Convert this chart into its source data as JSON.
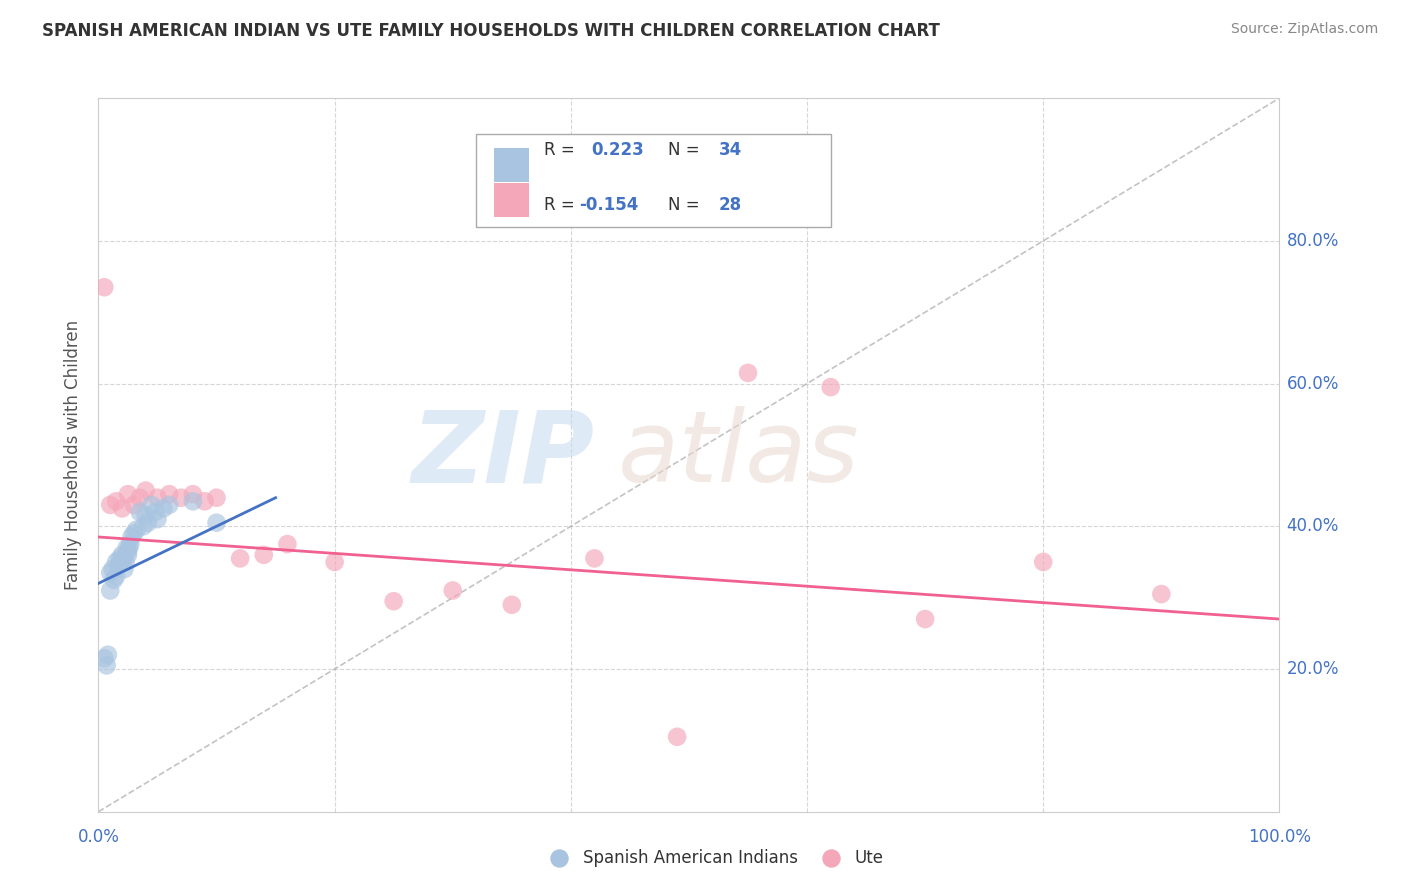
{
  "title": "SPANISH AMERICAN INDIAN VS UTE FAMILY HOUSEHOLDS WITH CHILDREN CORRELATION CHART",
  "source": "Source: ZipAtlas.com",
  "ylabel": "Family Households with Children",
  "xlim": [
    0.0,
    1.0
  ],
  "ylim": [
    0.0,
    1.0
  ],
  "legend_r1": "R =  0.223",
  "legend_n1": "N = 34",
  "legend_r2": "R = -0.154",
  "legend_n2": "N = 28",
  "color_blue": "#a8c4e0",
  "color_pink": "#f4a7b9",
  "line_blue": "#4472c4",
  "line_pink": "#f06090",
  "scatter_alpha": 0.65,
  "scatter_size": 180,
  "spanish_x": [
    0.005,
    0.007,
    0.008,
    0.01,
    0.01,
    0.012,
    0.013,
    0.015,
    0.015,
    0.017,
    0.018,
    0.02,
    0.021,
    0.022,
    0.023,
    0.024,
    0.025,
    0.025,
    0.026,
    0.027,
    0.028,
    0.03,
    0.032,
    0.035,
    0.038,
    0.04,
    0.042,
    0.045,
    0.048,
    0.05,
    0.055,
    0.06,
    0.08,
    0.1
  ],
  "spanish_y": [
    0.215,
    0.205,
    0.22,
    0.335,
    0.31,
    0.34,
    0.325,
    0.35,
    0.33,
    0.345,
    0.355,
    0.36,
    0.355,
    0.34,
    0.35,
    0.37,
    0.36,
    0.365,
    0.37,
    0.375,
    0.385,
    0.39,
    0.395,
    0.42,
    0.4,
    0.415,
    0.405,
    0.43,
    0.42,
    0.41,
    0.425,
    0.43,
    0.435,
    0.405
  ],
  "ute_x": [
    0.005,
    0.01,
    0.015,
    0.02,
    0.025,
    0.03,
    0.035,
    0.04,
    0.05,
    0.06,
    0.07,
    0.08,
    0.09,
    0.1,
    0.12,
    0.14,
    0.16,
    0.2,
    0.25,
    0.3,
    0.35,
    0.42,
    0.49,
    0.55,
    0.62,
    0.7,
    0.8,
    0.9
  ],
  "ute_y": [
    0.735,
    0.43,
    0.435,
    0.425,
    0.445,
    0.43,
    0.44,
    0.45,
    0.44,
    0.445,
    0.44,
    0.445,
    0.435,
    0.44,
    0.355,
    0.36,
    0.375,
    0.35,
    0.295,
    0.31,
    0.29,
    0.355,
    0.105,
    0.615,
    0.595,
    0.27,
    0.35,
    0.305
  ],
  "blue_line_x": [
    0.0,
    0.15
  ],
  "blue_line_y": [
    0.32,
    0.44
  ],
  "pink_line_x": [
    0.0,
    1.0
  ],
  "pink_line_y": [
    0.385,
    0.27
  ],
  "diag_line_color": "#aaaaaa",
  "grid_color": "#cccccc",
  "background_color": "#ffffff",
  "title_color": "#333333",
  "tick_color": "#4472c4",
  "source_color": "#888888",
  "right_ytick_positions": [
    0.2,
    0.4,
    0.6,
    0.8
  ],
  "right_ytick_labels": [
    "20.0%",
    "40.0%",
    "60.0%",
    "80.0%"
  ]
}
